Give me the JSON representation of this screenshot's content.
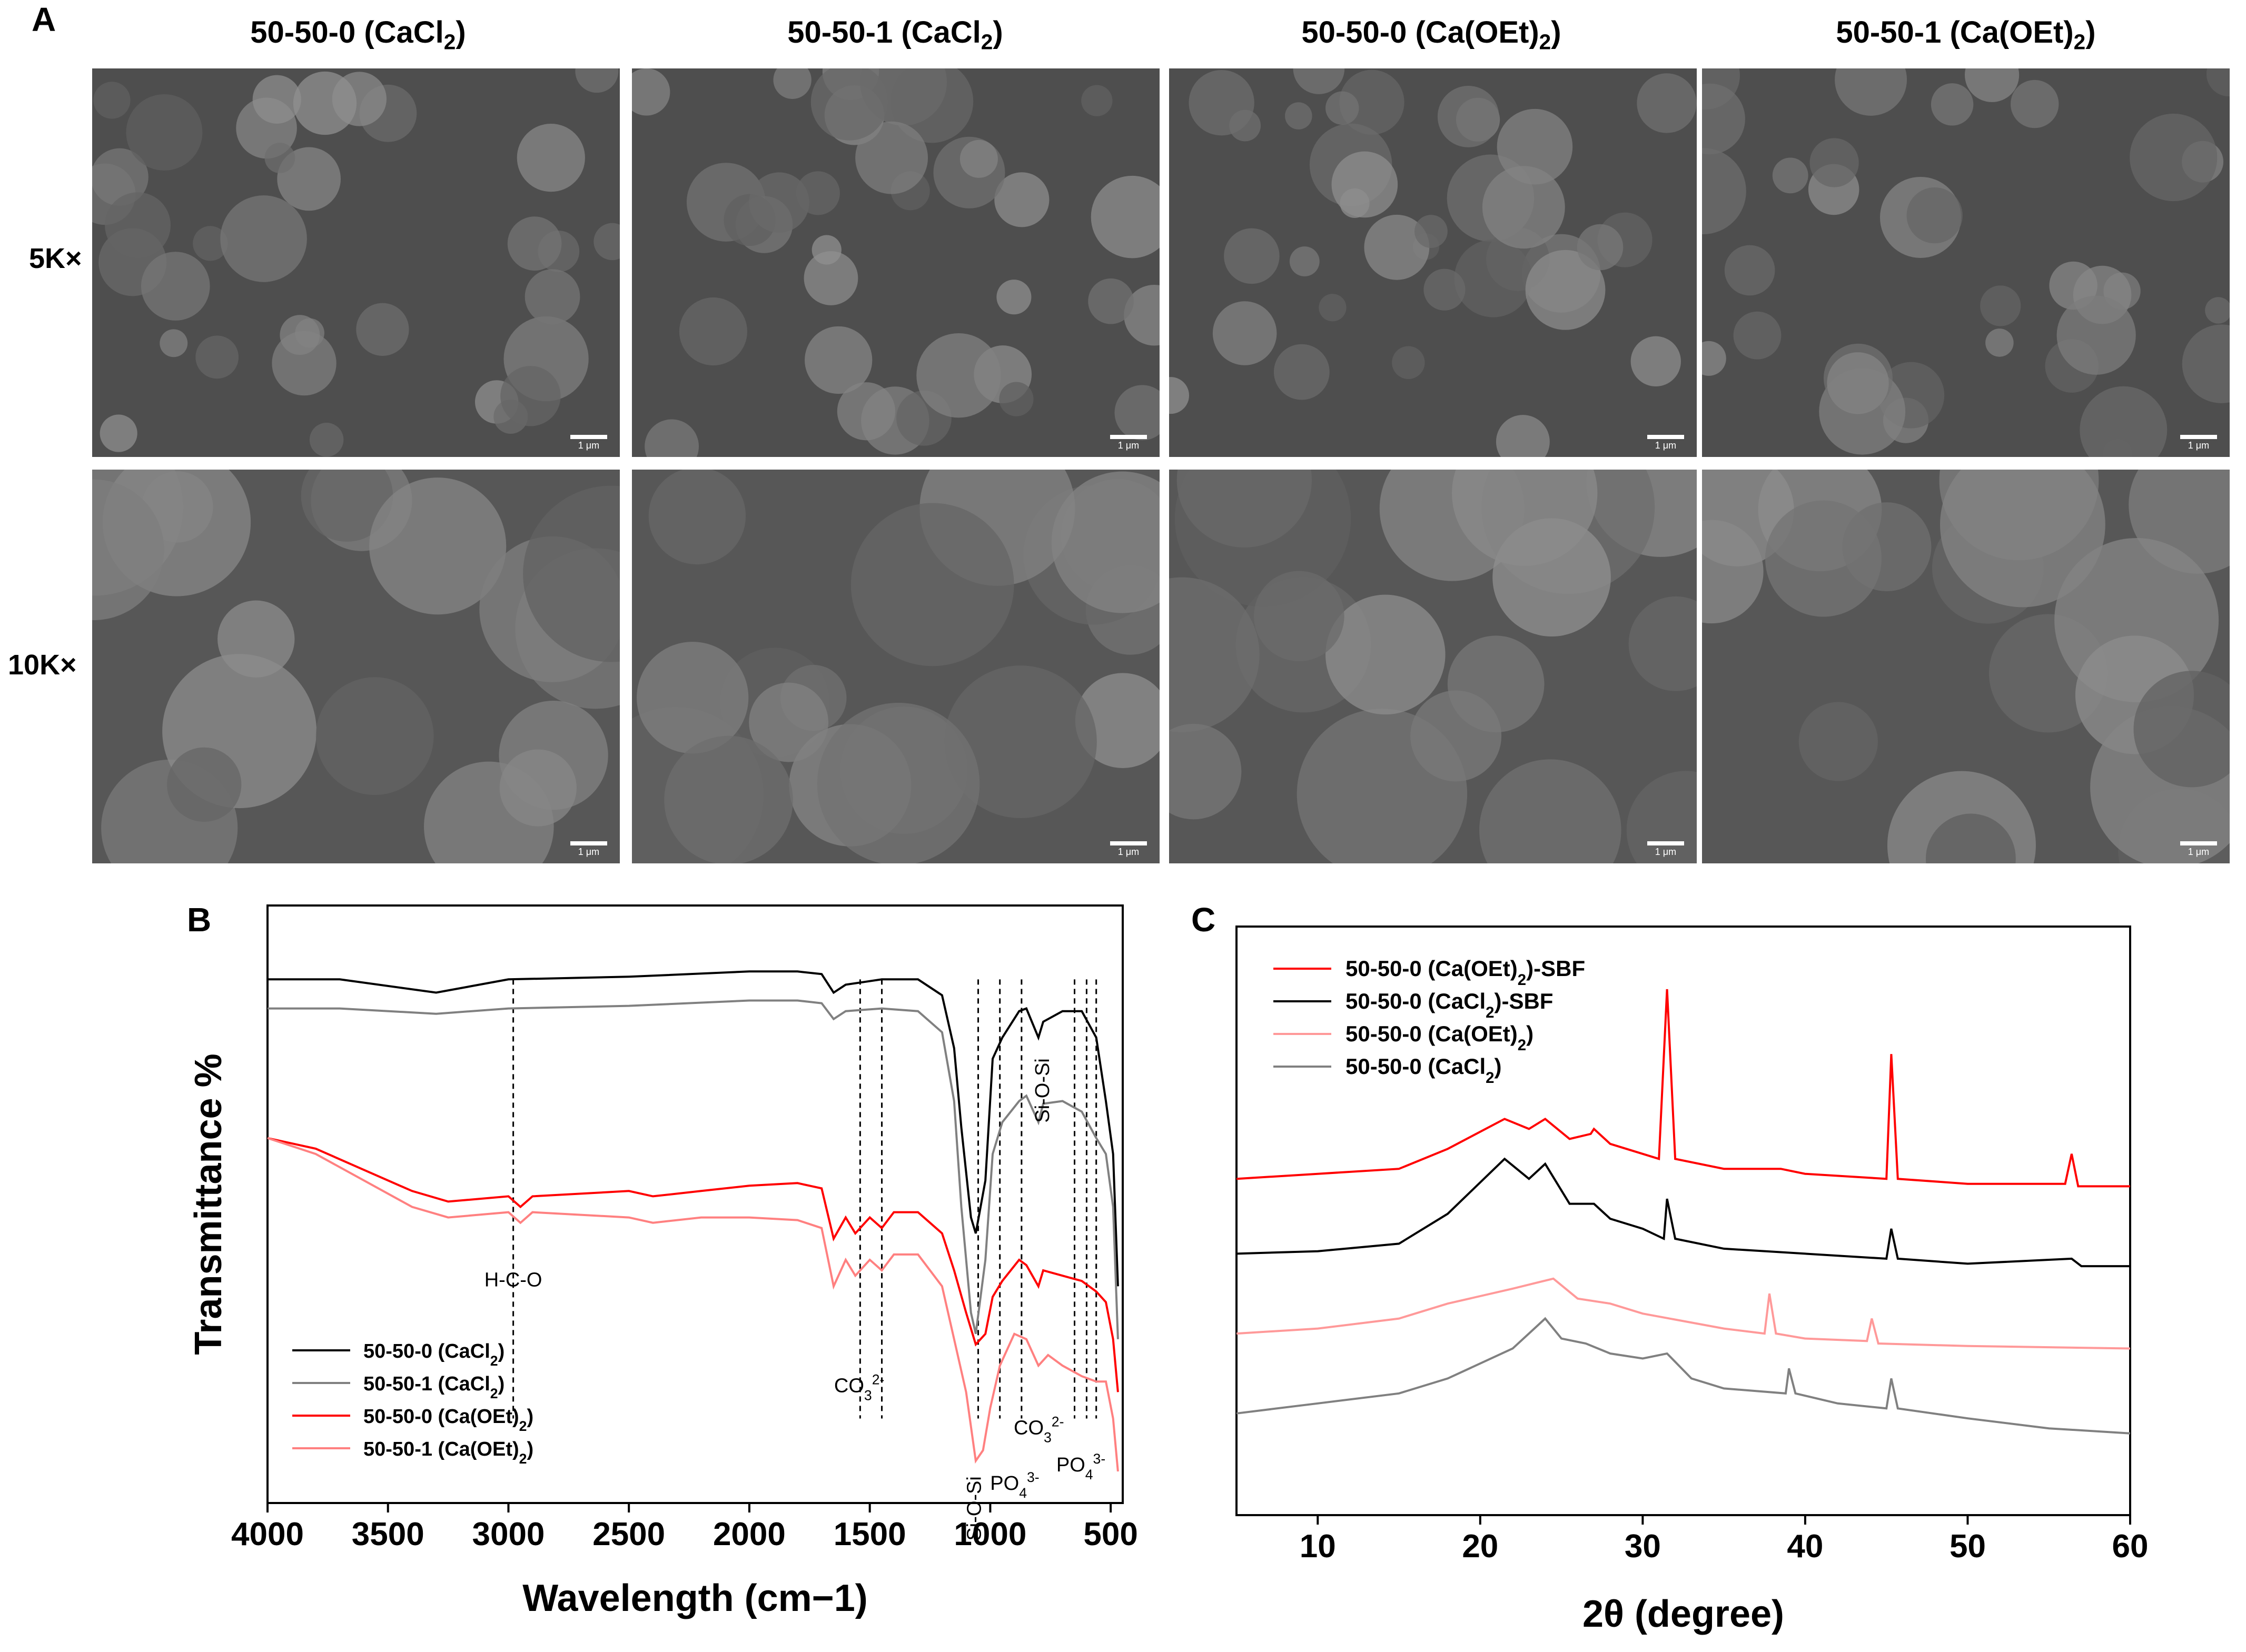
{
  "panel_a": {
    "letter": "A",
    "columns": [
      {
        "title": "50-50-0 (CaCl",
        "sub": "2",
        "tail": ")"
      },
      {
        "title": "50-50-1 (CaCl",
        "sub": "2",
        "tail": ")"
      },
      {
        "title": "50-50-0 (Ca(OEt)",
        "sub": "2",
        "tail": ")"
      },
      {
        "title": "50-50-1 (Ca(OEt)",
        "sub": "2",
        "tail": ")"
      }
    ],
    "rows": [
      "5K×",
      "10K×"
    ],
    "scale_label": "1 μm"
  },
  "chart_data": [
    {
      "panel": "B",
      "type": "line",
      "xlabel": "Wavelength (cm−1)",
      "ylabel": "Transmittance %",
      "xlim": [
        4000,
        450
      ],
      "x_reversed": true,
      "xticks": [
        4000,
        3500,
        3000,
        2500,
        2000,
        1500,
        1000,
        500
      ],
      "y_ticks_shown": false,
      "legend": {
        "placement": "bottom-left"
      },
      "series": [
        {
          "name": "50-50-0 (CaCl2)",
          "label": "50-50-0 (CaCl",
          "sub": "2",
          "tail": ")",
          "color": "#000000",
          "points": [
            [
              4000,
              0.93
            ],
            [
              3700,
              0.93
            ],
            [
              3300,
              0.905
            ],
            [
              3000,
              0.93
            ],
            [
              2500,
              0.935
            ],
            [
              2000,
              0.945
            ],
            [
              1800,
              0.945
            ],
            [
              1700,
              0.94
            ],
            [
              1650,
              0.905
            ],
            [
              1600,
              0.92
            ],
            [
              1450,
              0.93
            ],
            [
              1300,
              0.93
            ],
            [
              1200,
              0.9
            ],
            [
              1150,
              0.8
            ],
            [
              1120,
              0.65
            ],
            [
              1080,
              0.48
            ],
            [
              1060,
              0.45
            ],
            [
              1020,
              0.55
            ],
            [
              990,
              0.78
            ],
            [
              950,
              0.82
            ],
            [
              880,
              0.87
            ],
            [
              850,
              0.875
            ],
            [
              800,
              0.82
            ],
            [
              780,
              0.85
            ],
            [
              700,
              0.87
            ],
            [
              620,
              0.87
            ],
            [
              560,
              0.82
            ],
            [
              520,
              0.7
            ],
            [
              490,
              0.6
            ],
            [
              470,
              0.35
            ]
          ]
        },
        {
          "name": "50-50-1 (CaCl2)",
          "label": "50-50-1 (CaCl",
          "sub": "2",
          "tail": ")",
          "color": "#808080",
          "points": [
            [
              4000,
              0.875
            ],
            [
              3700,
              0.875
            ],
            [
              3300,
              0.865
            ],
            [
              3000,
              0.875
            ],
            [
              2500,
              0.88
            ],
            [
              2000,
              0.89
            ],
            [
              1800,
              0.89
            ],
            [
              1700,
              0.885
            ],
            [
              1650,
              0.855
            ],
            [
              1600,
              0.87
            ],
            [
              1450,
              0.875
            ],
            [
              1300,
              0.87
            ],
            [
              1200,
              0.83
            ],
            [
              1150,
              0.7
            ],
            [
              1120,
              0.5
            ],
            [
              1080,
              0.3
            ],
            [
              1060,
              0.26
            ],
            [
              1020,
              0.4
            ],
            [
              990,
              0.6
            ],
            [
              950,
              0.66
            ],
            [
              880,
              0.7
            ],
            [
              850,
              0.71
            ],
            [
              800,
              0.66
            ],
            [
              780,
              0.695
            ],
            [
              700,
              0.7
            ],
            [
              620,
              0.68
            ],
            [
              560,
              0.63
            ],
            [
              520,
              0.6
            ],
            [
              490,
              0.5
            ],
            [
              470,
              0.25
            ]
          ]
        },
        {
          "name": "50-50-0 (Ca(OEt)2)",
          "label": "50-50-0 (Ca(OEt)",
          "sub": "2",
          "tail": ")",
          "color": "#ff0000",
          "points": [
            [
              4000,
              0.63
            ],
            [
              3800,
              0.61
            ],
            [
              3600,
              0.57
            ],
            [
              3400,
              0.53
            ],
            [
              3250,
              0.51
            ],
            [
              3000,
              0.52
            ],
            [
              2950,
              0.5
            ],
            [
              2900,
              0.52
            ],
            [
              2500,
              0.53
            ],
            [
              2400,
              0.52
            ],
            [
              2200,
              0.53
            ],
            [
              2000,
              0.54
            ],
            [
              1800,
              0.545
            ],
            [
              1700,
              0.535
            ],
            [
              1650,
              0.44
            ],
            [
              1600,
              0.48
            ],
            [
              1560,
              0.45
            ],
            [
              1500,
              0.48
            ],
            [
              1450,
              0.46
            ],
            [
              1400,
              0.49
            ],
            [
              1300,
              0.49
            ],
            [
              1200,
              0.45
            ],
            [
              1150,
              0.38
            ],
            [
              1100,
              0.3
            ],
            [
              1060,
              0.24
            ],
            [
              1020,
              0.26
            ],
            [
              990,
              0.33
            ],
            [
              950,
              0.36
            ],
            [
              880,
              0.4
            ],
            [
              850,
              0.39
            ],
            [
              800,
              0.35
            ],
            [
              780,
              0.38
            ],
            [
              700,
              0.37
            ],
            [
              620,
              0.36
            ],
            [
              560,
              0.34
            ],
            [
              520,
              0.32
            ],
            [
              490,
              0.25
            ],
            [
              470,
              0.15
            ]
          ]
        },
        {
          "name": "50-50-1 (Ca(OEt)2)",
          "label": "50-50-1 (Ca(OEt)",
          "sub": "2",
          "tail": ")",
          "color": "#ff8080",
          "points": [
            [
              4000,
              0.63
            ],
            [
              3800,
              0.6
            ],
            [
              3600,
              0.55
            ],
            [
              3400,
              0.5
            ],
            [
              3250,
              0.48
            ],
            [
              3000,
              0.49
            ],
            [
              2950,
              0.47
            ],
            [
              2900,
              0.49
            ],
            [
              2500,
              0.48
            ],
            [
              2400,
              0.47
            ],
            [
              2200,
              0.48
            ],
            [
              2000,
              0.48
            ],
            [
              1800,
              0.475
            ],
            [
              1700,
              0.46
            ],
            [
              1650,
              0.35
            ],
            [
              1600,
              0.4
            ],
            [
              1560,
              0.37
            ],
            [
              1500,
              0.4
            ],
            [
              1450,
              0.38
            ],
            [
              1400,
              0.41
            ],
            [
              1300,
              0.41
            ],
            [
              1200,
              0.35
            ],
            [
              1150,
              0.25
            ],
            [
              1100,
              0.15
            ],
            [
              1060,
              0.02
            ],
            [
              1030,
              0.04
            ],
            [
              1000,
              0.12
            ],
            [
              960,
              0.2
            ],
            [
              900,
              0.26
            ],
            [
              850,
              0.25
            ],
            [
              800,
              0.2
            ],
            [
              760,
              0.22
            ],
            [
              700,
              0.2
            ],
            [
              620,
              0.18
            ],
            [
              560,
              0.17
            ],
            [
              520,
              0.17
            ],
            [
              490,
              0.1
            ],
            [
              470,
              0.0
            ]
          ]
        }
      ],
      "reference_lines": [
        2980,
        1540,
        1450,
        1050,
        960,
        870,
        650,
        600,
        560
      ],
      "annotations": [
        {
          "text": "H-C-O",
          "x": 2980
        },
        {
          "text": "CO",
          "sub": "3",
          "sup": "2-",
          "x": 1500
        },
        {
          "text": "Si-O-Si",
          "x": 800,
          "rotated": true
        },
        {
          "text": "CO",
          "sub": "3",
          "sup": "2-",
          "x": 820
        },
        {
          "text": "Si-O-Si",
          "x": 1100,
          "rotated": true
        },
        {
          "text": "PO",
          "sub": "4",
          "sup": "3-",
          "x": 920
        },
        {
          "text": "PO",
          "sub": "4",
          "sup": "3-",
          "x": 600
        }
      ]
    },
    {
      "panel": "C",
      "type": "line",
      "xlabel": "2θ (degree)",
      "ylabel": "",
      "xlim": [
        5,
        60
      ],
      "xticks": [
        10,
        20,
        30,
        40,
        50,
        60
      ],
      "y_ticks_shown": false,
      "legend": {
        "placement": "top-left"
      },
      "series": [
        {
          "name": "50-50-0 (Ca(OEt)2)-SBF",
          "label": "50-50-0 (Ca(OEt)",
          "sub": "2",
          "tail": ")-SBF",
          "color": "#ff0000",
          "points": [
            [
              5,
              0.6
            ],
            [
              10,
              0.61
            ],
            [
              15,
              0.62
            ],
            [
              18,
              0.66
            ],
            [
              21.5,
              0.72
            ],
            [
              23,
              0.7
            ],
            [
              24,
              0.72
            ],
            [
              25.5,
              0.68
            ],
            [
              26.8,
              0.69
            ],
            [
              27,
              0.7
            ],
            [
              28,
              0.67
            ],
            [
              30,
              0.65
            ],
            [
              31,
              0.64
            ],
            [
              31.5,
              0.98
            ],
            [
              32,
              0.64
            ],
            [
              35,
              0.62
            ],
            [
              38.5,
              0.62
            ],
            [
              40,
              0.61
            ],
            [
              45,
              0.6
            ],
            [
              45.3,
              0.85
            ],
            [
              45.7,
              0.6
            ],
            [
              50,
              0.59
            ],
            [
              56,
              0.59
            ],
            [
              56.4,
              0.65
            ],
            [
              56.8,
              0.585
            ],
            [
              60,
              0.585
            ]
          ]
        },
        {
          "name": "50-50-0 (CaCl2)-SBF",
          "label": "50-50-0 (CaCl",
          "sub": "2",
          "tail": ")-SBF",
          "color": "#000000",
          "points": [
            [
              5,
              0.45
            ],
            [
              10,
              0.455
            ],
            [
              15,
              0.47
            ],
            [
              18,
              0.53
            ],
            [
              21.5,
              0.64
            ],
            [
              23,
              0.6
            ],
            [
              24,
              0.63
            ],
            [
              25.5,
              0.55
            ],
            [
              27,
              0.55
            ],
            [
              28,
              0.52
            ],
            [
              30,
              0.5
            ],
            [
              31.3,
              0.48
            ],
            [
              31.5,
              0.56
            ],
            [
              32,
              0.48
            ],
            [
              35,
              0.46
            ],
            [
              40,
              0.45
            ],
            [
              45,
              0.44
            ],
            [
              45.3,
              0.5
            ],
            [
              45.7,
              0.44
            ],
            [
              50,
              0.43
            ],
            [
              56.4,
              0.44
            ],
            [
              57,
              0.425
            ],
            [
              60,
              0.425
            ]
          ]
        },
        {
          "name": "50-50-0 (Ca(OEt)2)",
          "label": "50-50-0 (Ca(OEt)",
          "sub": "2",
          "tail": ")",
          "color": "#ff9999",
          "points": [
            [
              5,
              0.29
            ],
            [
              10,
              0.3
            ],
            [
              15,
              0.32
            ],
            [
              18,
              0.35
            ],
            [
              22,
              0.38
            ],
            [
              24.5,
              0.4
            ],
            [
              26,
              0.36
            ],
            [
              28,
              0.35
            ],
            [
              30,
              0.33
            ],
            [
              35,
              0.3
            ],
            [
              37.5,
              0.29
            ],
            [
              37.8,
              0.37
            ],
            [
              38.2,
              0.29
            ],
            [
              40,
              0.28
            ],
            [
              43.8,
              0.275
            ],
            [
              44.1,
              0.32
            ],
            [
              44.5,
              0.27
            ],
            [
              50,
              0.265
            ],
            [
              60,
              0.26
            ]
          ]
        },
        {
          "name": "50-50-0 (CaCl2)",
          "label": "50-50-0 (CaCl",
          "sub": "2",
          "tail": ")",
          "color": "#808080",
          "points": [
            [
              5,
              0.13
            ],
            [
              10,
              0.15
            ],
            [
              15,
              0.17
            ],
            [
              18,
              0.2
            ],
            [
              22,
              0.26
            ],
            [
              24,
              0.32
            ],
            [
              25,
              0.28
            ],
            [
              26.5,
              0.27
            ],
            [
              28,
              0.25
            ],
            [
              30,
              0.24
            ],
            [
              31.5,
              0.25
            ],
            [
              33,
              0.2
            ],
            [
              35,
              0.18
            ],
            [
              38.8,
              0.17
            ],
            [
              39,
              0.22
            ],
            [
              39.4,
              0.17
            ],
            [
              42,
              0.15
            ],
            [
              45,
              0.14
            ],
            [
              45.3,
              0.2
            ],
            [
              45.7,
              0.14
            ],
            [
              50,
              0.12
            ],
            [
              55,
              0.1
            ],
            [
              60,
              0.09
            ]
          ]
        }
      ]
    }
  ]
}
